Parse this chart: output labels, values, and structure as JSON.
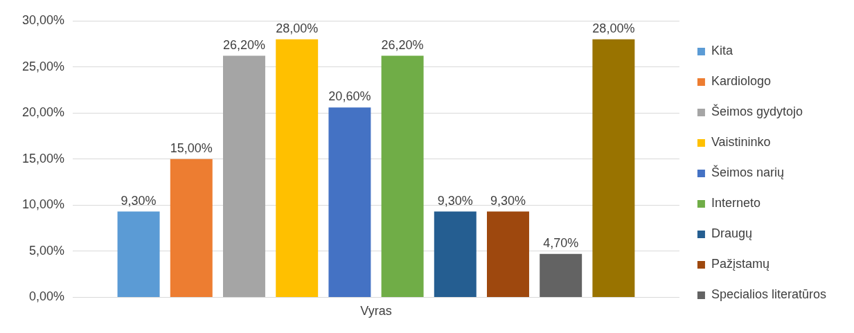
{
  "chart_data": {
    "type": "bar",
    "categories": [
      "Vyras"
    ],
    "series": [
      {
        "name": "Kita",
        "color": "#5b9bd5",
        "values": [
          9.3
        ],
        "value_labels": [
          "9,30%"
        ]
      },
      {
        "name": "Kardiologo",
        "color": "#ed7d31",
        "values": [
          15.0
        ],
        "value_labels": [
          "15,00%"
        ]
      },
      {
        "name": "Šeimos gydytojo",
        "color": "#a5a5a5",
        "values": [
          26.2
        ],
        "value_labels": [
          "26,20%"
        ]
      },
      {
        "name": "Vaistininko",
        "color": "#ffc000",
        "values": [
          28.0
        ],
        "value_labels": [
          "28,00%"
        ]
      },
      {
        "name": "Šeimos narių",
        "color": "#4472c4",
        "values": [
          20.6
        ],
        "value_labels": [
          "20,60%"
        ]
      },
      {
        "name": "Interneto",
        "color": "#70ad47",
        "values": [
          26.2
        ],
        "value_labels": [
          "26,20%"
        ]
      },
      {
        "name": "Draugų",
        "color": "#255e91",
        "values": [
          9.3
        ],
        "value_labels": [
          "9,30%"
        ]
      },
      {
        "name": "Pažįstamų",
        "color": "#9e480e",
        "values": [
          9.3
        ],
        "value_labels": [
          "9,30%"
        ]
      },
      {
        "name": "Specialios literatūros",
        "color": "#636363",
        "values": [
          4.7
        ],
        "value_labels": [
          "4,70%"
        ]
      },
      {
        "color": "#997300",
        "values": [
          28.0
        ],
        "value_labels": [
          "28,00%"
        ]
      }
    ],
    "ylim": [
      0,
      30
    ],
    "yticks": [
      {
        "value": 0,
        "label": "0,00%"
      },
      {
        "value": 5,
        "label": "5,00%"
      },
      {
        "value": 10,
        "label": "10,00%"
      },
      {
        "value": 15,
        "label": "15,00%"
      },
      {
        "value": 20,
        "label": "20,00%"
      },
      {
        "value": 25,
        "label": "25,00%"
      },
      {
        "value": 30,
        "label": "30,00%"
      }
    ],
    "grid": "y",
    "legend": "right"
  }
}
